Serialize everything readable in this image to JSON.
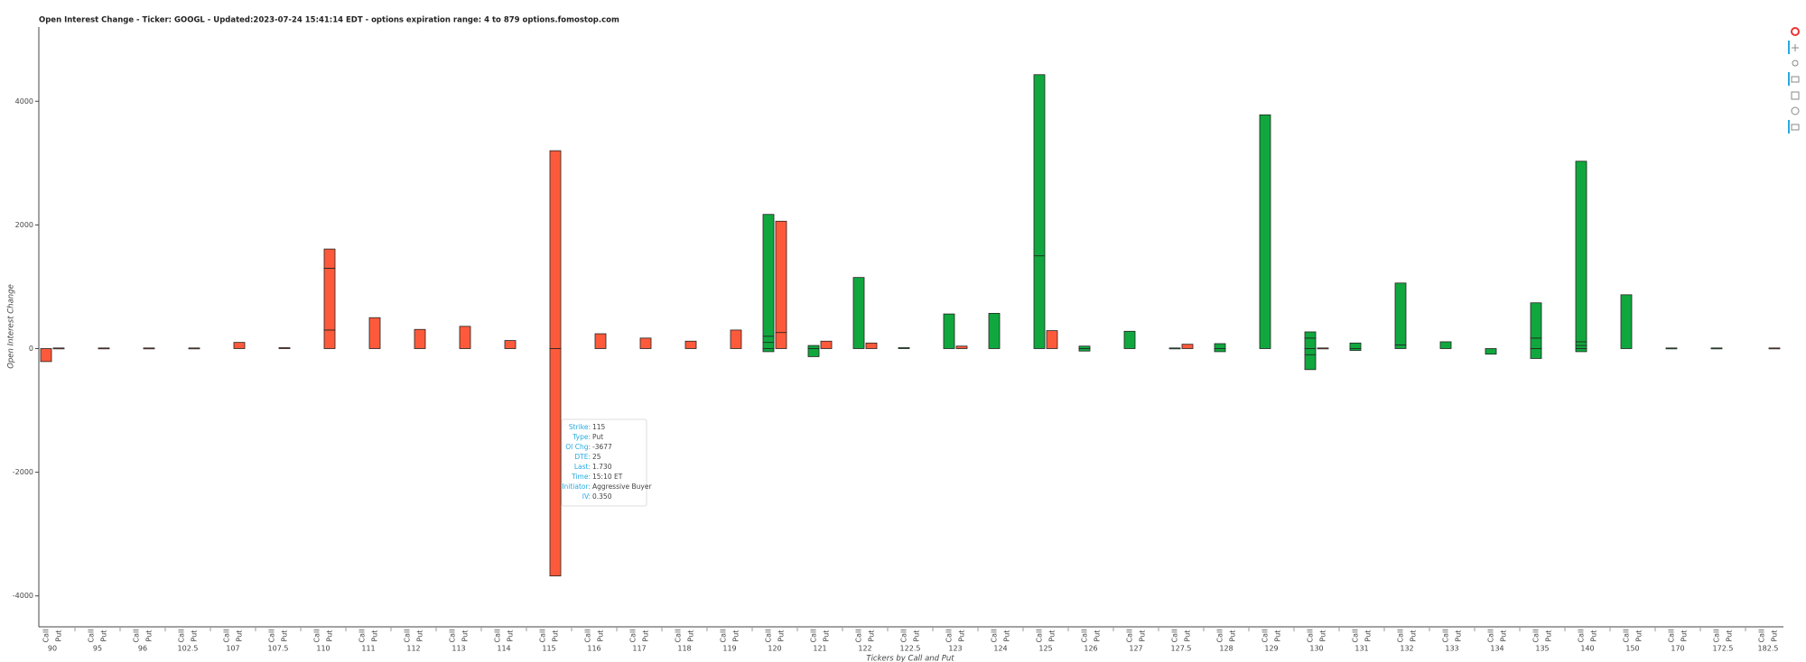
{
  "chart_data": {
    "type": "bar",
    "title": "Open Interest Change - Ticker: GOOGL - Updated:2023-07-24 15:41:14 EDT - options expiration range: 4 to 879          options.fomostop.com",
    "y_label": "Open Interest Change",
    "x_label": "Tickers by Call and Put",
    "categories": [
      "90",
      "95",
      "96",
      "102.5",
      "107",
      "107.5",
      "110",
      "111",
      "112",
      "113",
      "114",
      "115",
      "116",
      "117",
      "118",
      "119",
      "120",
      "121",
      "122",
      "122.5",
      "123",
      "124",
      "125",
      "126",
      "127",
      "127.5",
      "128",
      "129",
      "130",
      "131",
      "132",
      "133",
      "134",
      "135",
      "140",
      "150",
      "170",
      "172.5",
      "182.5"
    ],
    "series": [
      {
        "name": "Call",
        "colors": [
          "#fd5a3b",
          "#10a83e",
          "#10a83e",
          "#10a83e",
          "#10a83e",
          "#10a83e",
          "#10a83e",
          "#10a83e",
          "#10a83e",
          "#10a83e",
          "#10a83e",
          "#10a83e",
          "#10a83e",
          "#10a83e",
          "#10a83e",
          "#10a83e",
          "#10a83e",
          "#10a83e",
          "#10a83e",
          "#10a83e",
          "#10a83e",
          "#10a83e",
          "#10a83e",
          "#10a83e",
          "#10a83e",
          "#10a83e",
          "#10a83e",
          "#10a83e",
          "#10a83e",
          "#10a83e",
          "#10a83e",
          "#10a83e",
          "#10a83e",
          "#10a83e",
          "#10a83e",
          "#10a83e",
          "#10a83e",
          "#10a83e",
          "#10a83e"
        ],
        "values": [
          [
            -210
          ],
          [],
          [],
          [],
          [],
          [],
          [],
          [],
          [],
          [],
          [],
          [],
          [],
          [],
          [],
          [],
          [
            100,
            100,
            1970,
            -50
          ],
          [
            50,
            -130
          ],
          [
            1150
          ],
          [
            15
          ],
          [
            560
          ],
          [
            570
          ],
          [
            1500,
            2930
          ],
          [
            40,
            -40
          ],
          [
            280
          ],
          [
            10
          ],
          [
            80,
            -50
          ],
          [
            3780
          ],
          [
            170,
            100,
            -100,
            -240
          ],
          [
            90,
            -30
          ],
          [
            60,
            1000
          ],
          [
            110
          ],
          [
            -90
          ],
          [
            170,
            570,
            -160
          ],
          [
            50,
            60,
            2920,
            -50
          ],
          [
            870
          ],
          [
            10
          ],
          [
            10
          ],
          []
        ]
      },
      {
        "name": "Put",
        "colors": [
          "#fd5a3b",
          "#fd5a3b",
          "#fd5a3b",
          "#fd5a3b",
          "#fd5a3b",
          "#fd5a3b",
          "#fd5a3b",
          "#fd5a3b",
          "#fd5a3b",
          "#fd5a3b",
          "#fd5a3b",
          "#fd5a3b",
          "#fd5a3b",
          "#fd5a3b",
          "#fd5a3b",
          "#fd5a3b",
          "#fd5a3b",
          "#fd5a3b",
          "#fd5a3b",
          "#fd5a3b",
          "#fd5a3b",
          "#fd5a3b",
          "#fd5a3b",
          "#fd5a3b",
          "#fd5a3b",
          "#fd5a3b",
          "#fd5a3b",
          "#fd5a3b",
          "#fd5a3b",
          "#fd5a3b",
          "#fd5a3b",
          "#fd5a3b",
          "#fd5a3b",
          "#fd5a3b",
          "#fd5a3b",
          "#fd5a3b",
          "#fd5a3b",
          "#fd5a3b",
          "#fd5a3b"
        ],
        "values": [
          [
            10
          ],
          [
            10
          ],
          [
            10
          ],
          [
            10
          ],
          [
            100
          ],
          [
            15
          ],
          [
            300,
            1000,
            310
          ],
          [
            500
          ],
          [
            310
          ],
          [
            360
          ],
          [
            130
          ],
          [
            3200,
            -3677
          ],
          [
            240
          ],
          [
            170
          ],
          [
            120
          ],
          [
            300
          ],
          [
            260,
            1800
          ],
          [
            120
          ],
          [
            90
          ],
          [],
          [
            40
          ],
          [],
          [
            290
          ],
          [],
          [],
          [
            70
          ],
          [],
          [],
          [
            10
          ],
          [],
          [],
          [],
          [],
          [],
          [],
          [],
          [],
          [],
          [
            10
          ]
        ]
      }
    ],
    "ylim": [
      -4500,
      5200
    ],
    "yticks": [
      -4000,
      -2000,
      0,
      2000,
      4000
    ],
    "tooltip": {
      "rows": [
        [
          "Strike:",
          "115"
        ],
        [
          "Type:",
          "Put"
        ],
        [
          "OI Chg:",
          "-3677"
        ],
        [
          "DTE:",
          "25"
        ],
        [
          "Last:",
          "1.730"
        ],
        [
          "Time:",
          "15:10 ET"
        ],
        [
          "Initiator:",
          "Aggressive Buyer"
        ],
        [
          "IV:",
          "0.350"
        ]
      ]
    }
  }
}
